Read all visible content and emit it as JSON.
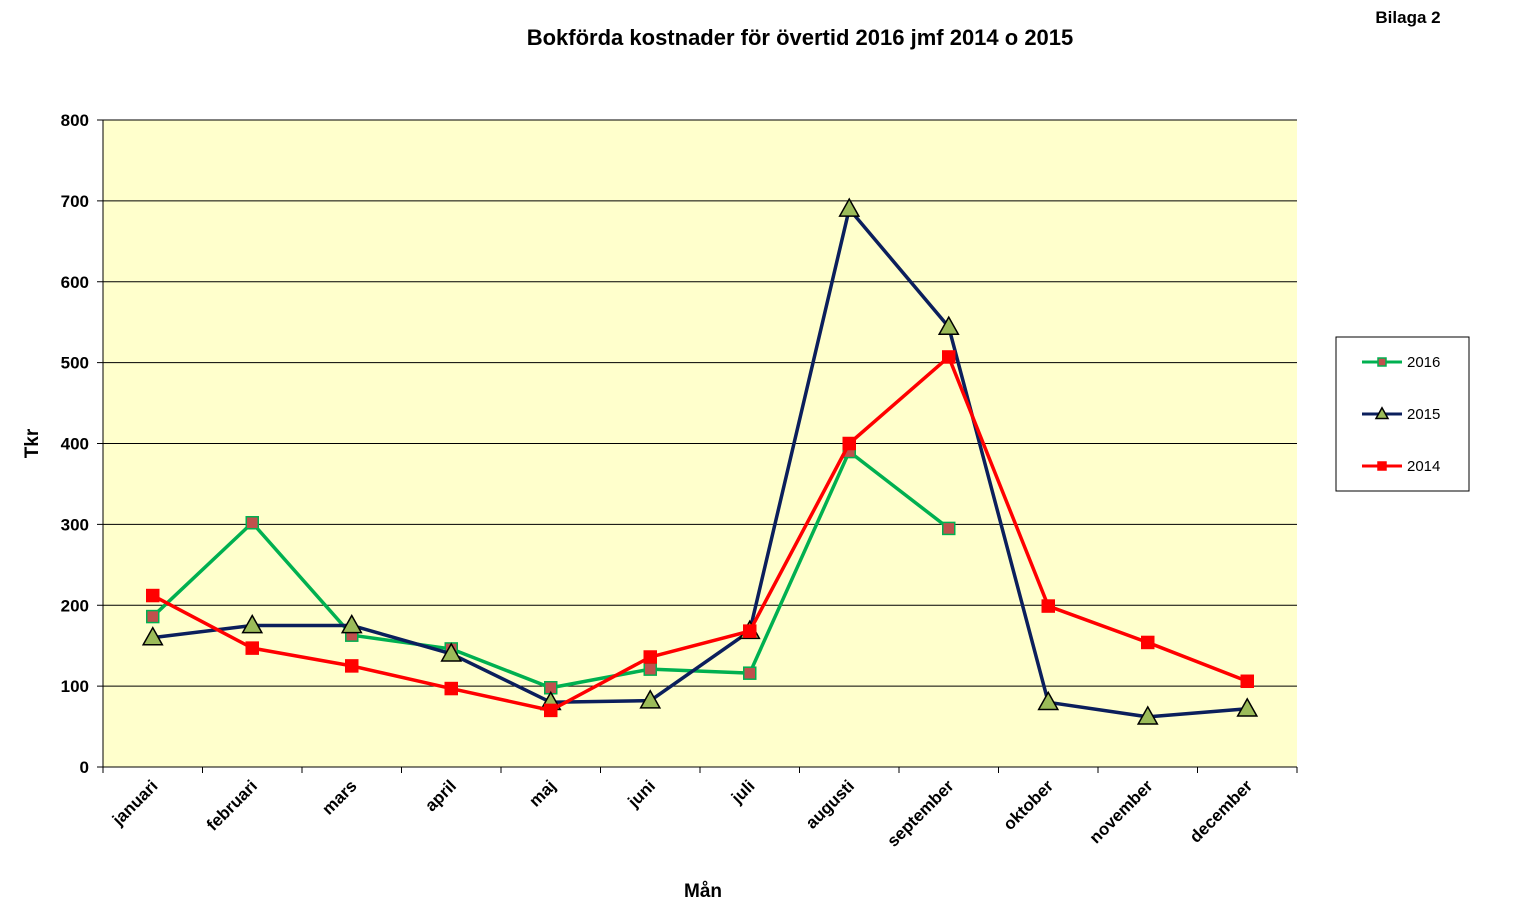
{
  "annotation": "Bilaga 2",
  "chart_data": {
    "type": "line",
    "title": "Bokförda kostnader för övertid 2016 jmf 2014 o 2015",
    "xlabel": "Mån",
    "ylabel": "Tkr",
    "ylim": [
      0,
      800
    ],
    "yticks": [
      0,
      100,
      200,
      300,
      400,
      500,
      600,
      700,
      800
    ],
    "grid": true,
    "plot_background": "#ffffcc",
    "legend_position": "right",
    "categories": [
      "januari",
      "februari",
      "mars",
      "april",
      "maj",
      "juni",
      "juli",
      "augusti",
      "september",
      "oktober",
      "november",
      "december"
    ],
    "series": [
      {
        "name": "2016",
        "color": "#00b050",
        "marker": "square",
        "marker_fill": "#c0504d",
        "values": [
          186,
          302,
          163,
          146,
          98,
          121,
          116,
          390,
          295,
          null,
          null,
          null
        ]
      },
      {
        "name": "2015",
        "color": "#0b1f5c",
        "marker": "triangle",
        "marker_fill": "#9bbb59",
        "values": [
          160,
          175,
          175,
          140,
          80,
          82,
          168,
          690,
          544,
          80,
          62,
          72
        ]
      },
      {
        "name": "2014",
        "color": "#ff0000",
        "marker": "square",
        "marker_fill": "#ff0000",
        "values": [
          212,
          147,
          125,
          97,
          70,
          136,
          168,
          400,
          507,
          199,
          154,
          106
        ]
      }
    ]
  }
}
